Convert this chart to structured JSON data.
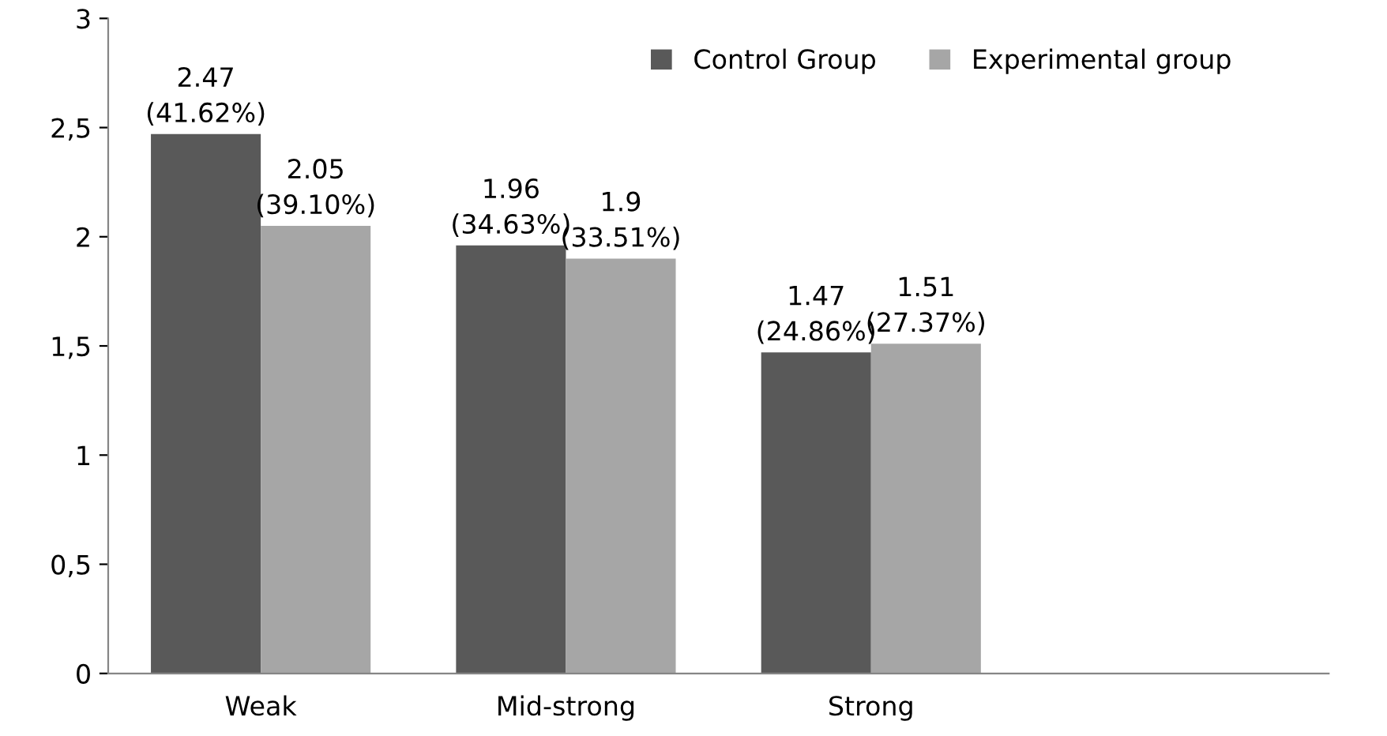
{
  "chart_data": {
    "type": "bar",
    "categories": [
      "Weak",
      "Mid-strong",
      "Strong",
      null
    ],
    "series": [
      {
        "name": "Control Group",
        "color": "#595959",
        "values": [
          2.47,
          1.96,
          1.47,
          null
        ],
        "value_labels": [
          "2.47\n(41.62%)",
          "1.96\n(34.63%)",
          "1.47\n(24.86%)",
          null
        ]
      },
      {
        "name": "Experimental group",
        "color": "#a6a6a6",
        "values": [
          2.05,
          1.9,
          1.51,
          null
        ],
        "value_labels": [
          "2.05\n(39.10%)",
          "1.9\n(33.51%)",
          "1.51\n(27.37%)",
          null
        ]
      }
    ],
    "ylim": [
      0,
      3
    ],
    "yticks": [
      0,
      {
        "value": 0.5,
        "label": "0,5"
      },
      1,
      {
        "value": 1.5,
        "label": "1,5"
      },
      2,
      {
        "value": 2.5,
        "label": "2,5"
      },
      3
    ],
    "grid": false,
    "legend": "top right"
  }
}
